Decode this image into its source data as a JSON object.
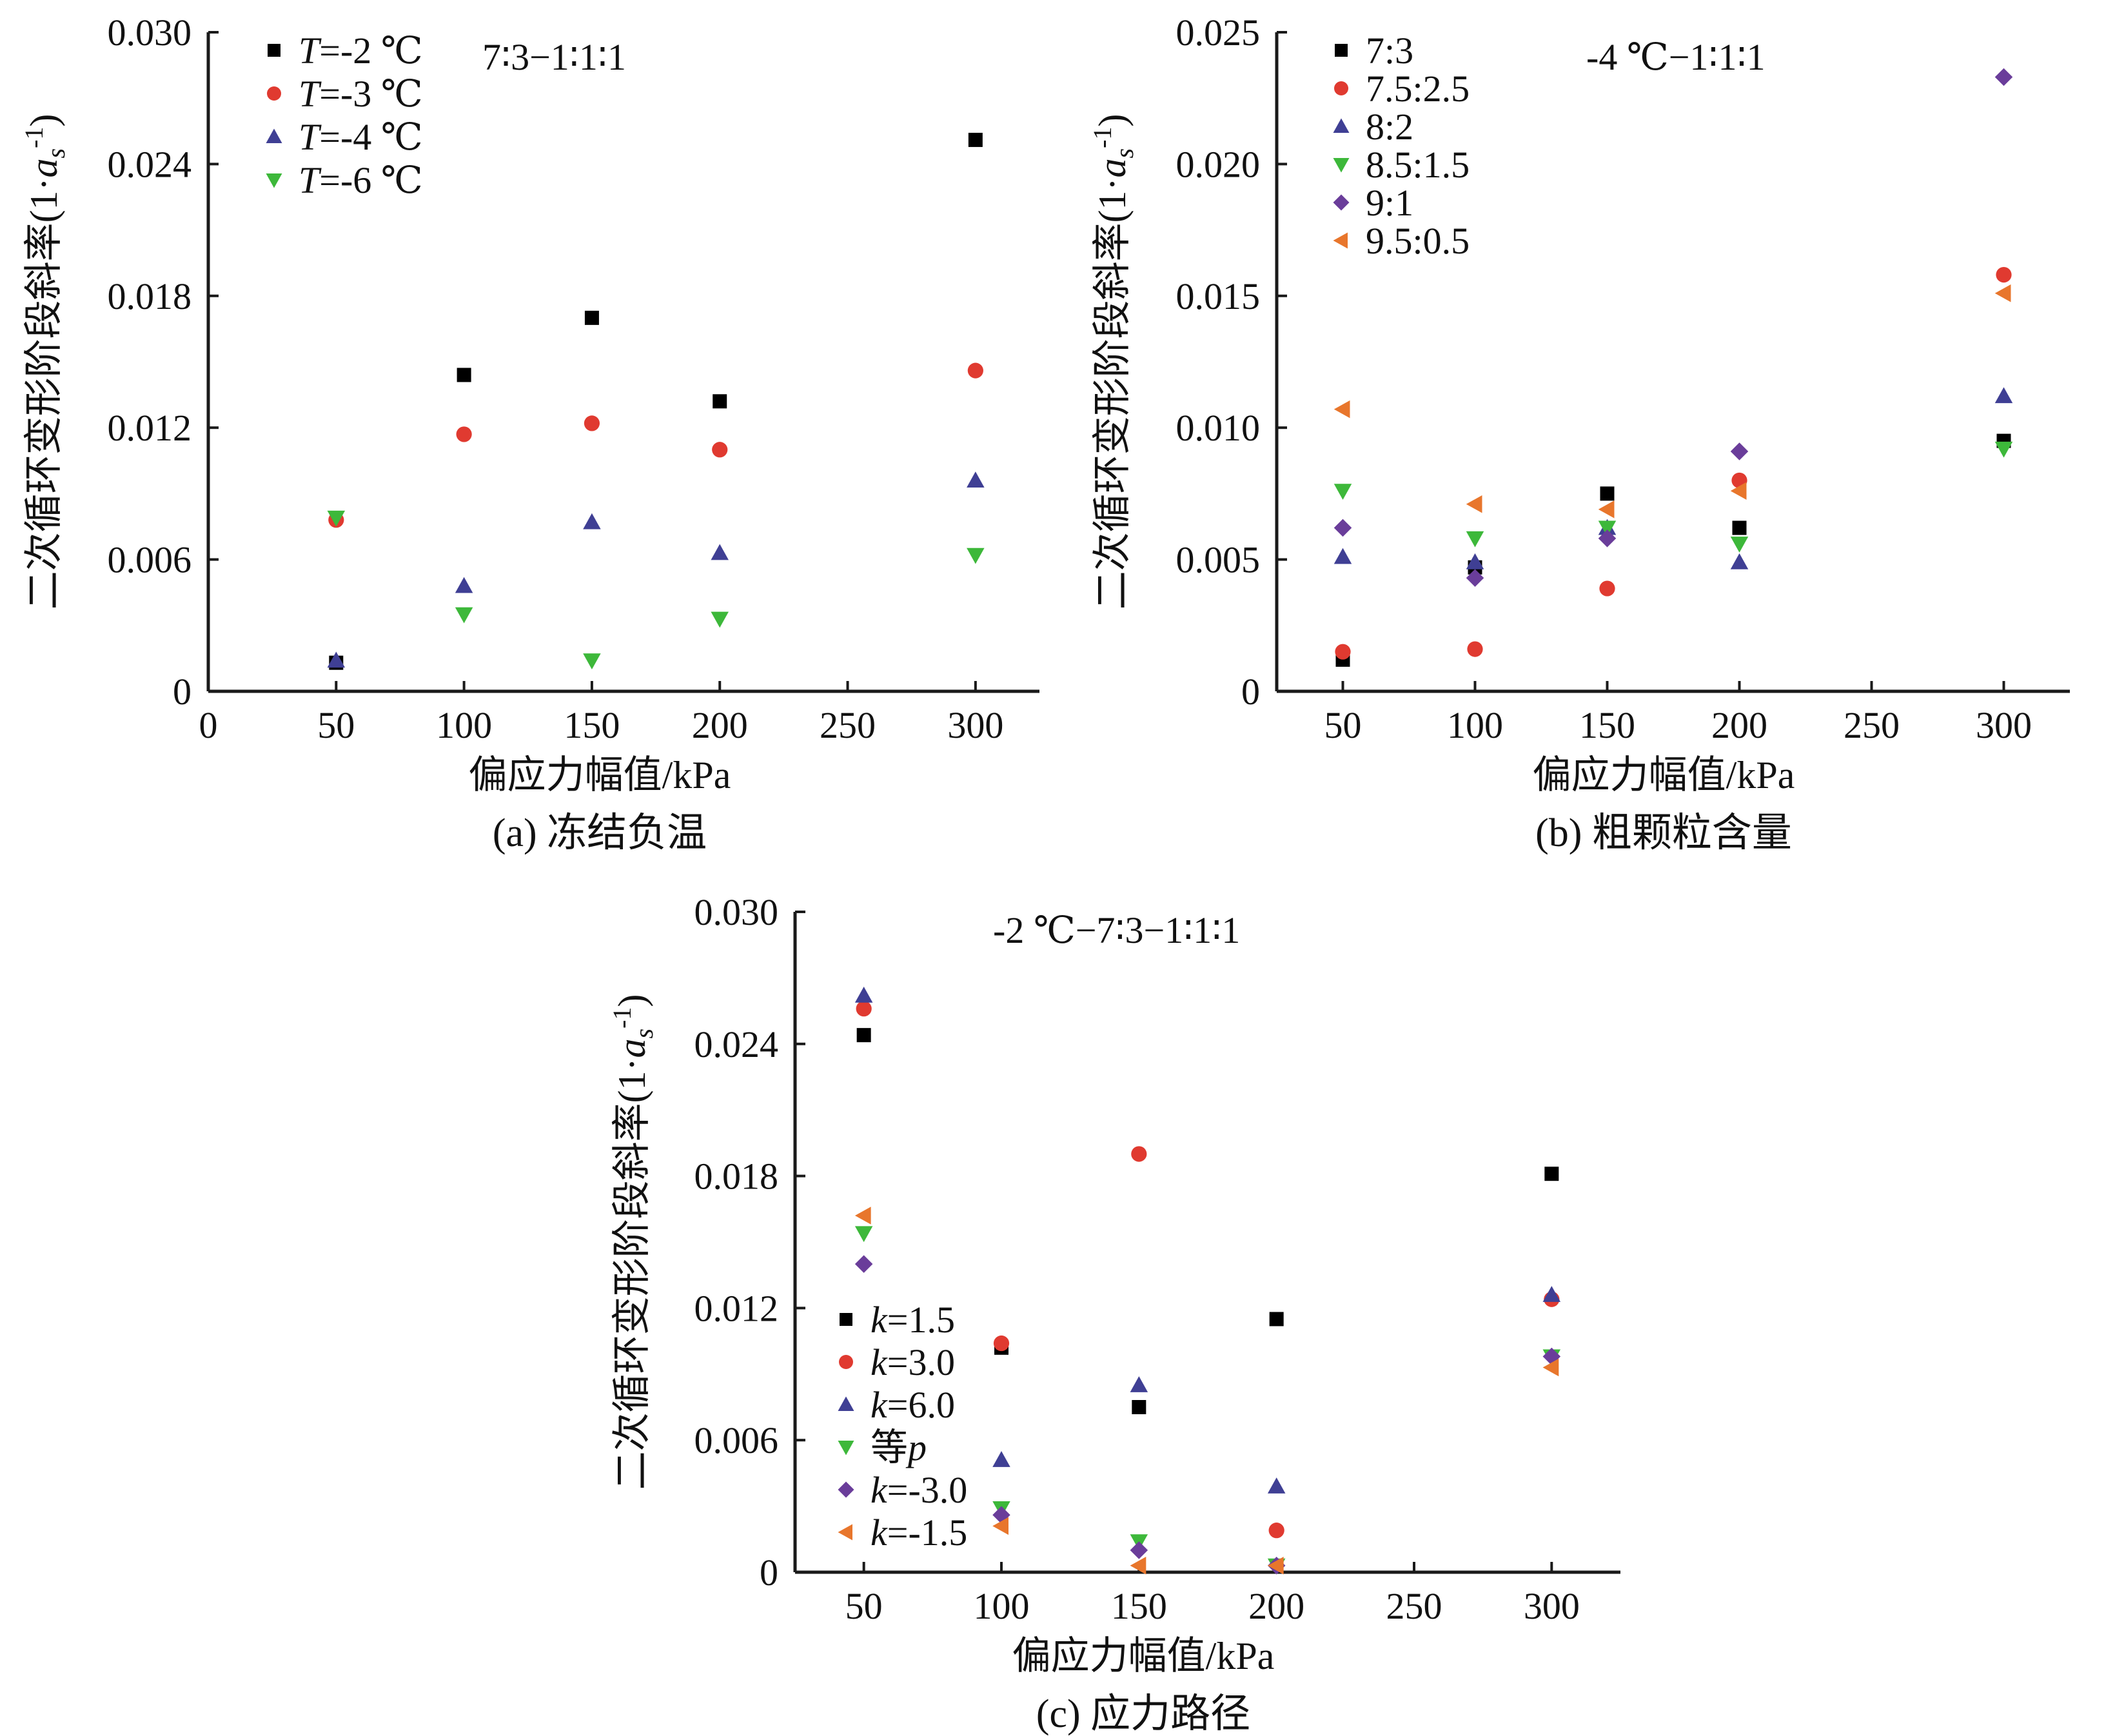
{
  "chart_data": [
    {
      "type": "scatter",
      "panel": "a",
      "caption": "(a) 冻结负温",
      "annotation": "7∶3−1∶1∶1",
      "xlabel": "偏应力幅值/kPa",
      "ylabel": "二次循环变形阶段斜率(1·a_s^-1)",
      "ylabel_text": "二次循环变形阶段斜率(1·",
      "ylabel_sym": "a",
      "ylabel_sub": "s",
      "ylabel_sup": "-1",
      "ylabel_close": ")",
      "xlim": [
        0,
        325
      ],
      "ylim": [
        0,
        0.03
      ],
      "xticks": [
        0,
        50,
        100,
        150,
        200,
        250,
        300
      ],
      "xtick_labels": [
        "0",
        "50",
        "100",
        "150",
        "200",
        "250",
        "300"
      ],
      "yticks": [
        0,
        0.006,
        0.012,
        0.018,
        0.024,
        0.03
      ],
      "ytick_labels": [
        "0",
        "0.006",
        "0.012",
        "0.018",
        "0.024",
        "0.030"
      ],
      "legend_position": "top-left",
      "series": [
        {
          "name": "T=-2 ℃",
          "name_italic": "T",
          "name_rest": "=-2 ℃",
          "marker": "square",
          "color": "#000000",
          "x": [
            50,
            100,
            150,
            200,
            300
          ],
          "y": [
            0.0013,
            0.0144,
            0.017,
            0.0132,
            0.0251
          ]
        },
        {
          "name": "T=-3 ℃",
          "name_italic": "T",
          "name_rest": "=-3 ℃",
          "marker": "circle",
          "color": "#e03a30",
          "x": [
            50,
            100,
            150,
            200,
            300
          ],
          "y": [
            0.0078,
            0.0117,
            0.0122,
            0.011,
            0.0146
          ]
        },
        {
          "name": "T=-4 ℃",
          "name_italic": "T",
          "name_rest": "=-4 ℃",
          "marker": "triangle-up",
          "color": "#3f3f94",
          "x": [
            50,
            100,
            150,
            200,
            300
          ],
          "y": [
            0.0014,
            0.0048,
            0.0077,
            0.0063,
            0.0096
          ]
        },
        {
          "name": "T=-6 ℃",
          "name_italic": "T",
          "name_rest": "=-6 ℃",
          "marker": "triangle-down",
          "color": "#3db83a",
          "x": [
            50,
            100,
            150,
            200,
            300
          ],
          "y": [
            0.0079,
            0.0035,
            0.0014,
            0.0033,
            0.0062
          ]
        }
      ]
    },
    {
      "type": "scatter",
      "panel": "b",
      "caption": "(b) 粗颗粒含量",
      "annotation": "-4 ℃−1∶1∶1",
      "xlabel": "偏应力幅值/kPa",
      "ylabel": "二次循环变形阶段斜率(1·a_s^-1)",
      "ylabel_text": "二次循环变形阶段斜率(1·",
      "ylabel_sym": "a",
      "ylabel_sub": "s",
      "ylabel_sup": "-1",
      "ylabel_close": ")",
      "xlim": [
        25,
        325
      ],
      "ylim": [
        0,
        0.025
      ],
      "xticks": [
        50,
        100,
        150,
        200,
        250,
        300
      ],
      "xtick_labels": [
        "50",
        "100",
        "150",
        "200",
        "250",
        "300"
      ],
      "yticks": [
        0,
        0.005,
        0.01,
        0.015,
        0.02,
        0.025
      ],
      "ytick_labels": [
        "0",
        "0.005",
        "0.010",
        "0.015",
        "0.020",
        "0.025"
      ],
      "legend_position": "top-left",
      "series": [
        {
          "name": "7:3",
          "marker": "square",
          "color": "#000000",
          "x": [
            50,
            100,
            150,
            200,
            300
          ],
          "y": [
            0.0012,
            0.0047,
            0.0075,
            0.0062,
            0.0095
          ]
        },
        {
          "name": "7.5:2.5",
          "marker": "circle",
          "color": "#e03a30",
          "x": [
            50,
            100,
            150,
            200,
            300
          ],
          "y": [
            0.0015,
            0.0016,
            0.0039,
            0.008,
            0.0158
          ]
        },
        {
          "name": "8:2",
          "marker": "triangle-up",
          "color": "#3f3f94",
          "x": [
            50,
            100,
            150,
            200,
            300
          ],
          "y": [
            0.0051,
            0.0049,
            0.0062,
            0.0049,
            0.0112
          ]
        },
        {
          "name": "8.5:1.5",
          "marker": "triangle-down",
          "color": "#3db83a",
          "x": [
            50,
            100,
            150,
            200,
            300
          ],
          "y": [
            0.0076,
            0.0058,
            0.0062,
            0.0056,
            0.0092
          ]
        },
        {
          "name": "9:1",
          "marker": "diamond",
          "color": "#6a3d9a",
          "x": [
            50,
            100,
            150,
            200,
            300
          ],
          "y": [
            0.0062,
            0.0043,
            0.0058,
            0.0091,
            0.0233
          ]
        },
        {
          "name": "9.5:0.5",
          "marker": "triangle-left",
          "color": "#e8762c",
          "x": [
            50,
            100,
            150,
            200,
            300
          ],
          "y": [
            0.0107,
            0.0071,
            0.0069,
            0.0076,
            0.0151
          ]
        }
      ]
    },
    {
      "type": "scatter",
      "panel": "c",
      "caption": "(c) 应力路径",
      "annotation": "-2 ℃−7∶3−1∶1∶1",
      "xlabel": "偏应力幅值/kPa",
      "ylabel": "二次循环变形阶段斜率(1·a_s^-1)",
      "ylabel_text": "二次循环变形阶段斜率(1·",
      "ylabel_sym": "a",
      "ylabel_sub": "s",
      "ylabel_sup": "-1",
      "ylabel_close": ")",
      "xlim": [
        25,
        325
      ],
      "ylim": [
        0,
        0.03
      ],
      "xticks": [
        50,
        100,
        150,
        200,
        250,
        300
      ],
      "xtick_labels": [
        "50",
        "100",
        "150",
        "200",
        "250",
        "300"
      ],
      "yticks": [
        0,
        0.006,
        0.012,
        0.018,
        0.024,
        0.03
      ],
      "ytick_labels": [
        "0",
        "0.006",
        "0.012",
        "0.018",
        "0.024",
        "0.030"
      ],
      "legend_position": "bottom-left",
      "series": [
        {
          "name": "k=1.5",
          "name_italic": "k",
          "name_rest": "=1.5",
          "marker": "square",
          "color": "#000000",
          "x": [
            50,
            100,
            150,
            200,
            300
          ],
          "y": [
            0.0244,
            0.0102,
            0.0075,
            0.0115,
            0.0181
          ]
        },
        {
          "name": "k=3.0",
          "name_italic": "k",
          "name_rest": "=3.0",
          "marker": "circle",
          "color": "#e03a30",
          "x": [
            50,
            100,
            150,
            200,
            300
          ],
          "y": [
            0.0256,
            0.0104,
            0.019,
            0.0019,
            0.0124
          ]
        },
        {
          "name": "k=6.0",
          "name_italic": "k",
          "name_rest": "=6.0",
          "marker": "triangle-up",
          "color": "#3f3f94",
          "x": [
            50,
            100,
            150,
            200,
            300
          ],
          "y": [
            0.0262,
            0.0051,
            0.0085,
            0.0039,
            0.0126
          ]
        },
        {
          "name": "等p",
          "name_rest": "等",
          "name_italic_after": "p",
          "marker": "triangle-down",
          "color": "#3db83a",
          "x": [
            50,
            100,
            150,
            200,
            300
          ],
          "y": [
            0.0154,
            0.0029,
            0.0014,
            0.0003,
            0.0098
          ]
        },
        {
          "name": "k=-3.0",
          "name_italic": "k",
          "name_rest": "=-3.0",
          "marker": "diamond",
          "color": "#6a3d9a",
          "x": [
            50,
            100,
            150,
            200,
            300
          ],
          "y": [
            0.014,
            0.0026,
            0.001,
            0.0003,
            0.0098
          ]
        },
        {
          "name": "k=-1.5",
          "name_italic": "k",
          "name_rest": "=-1.5",
          "marker": "triangle-left",
          "color": "#e8762c",
          "x": [
            50,
            100,
            150,
            200,
            300
          ],
          "y": [
            0.0162,
            0.0021,
            0.0003,
            0.0003,
            0.0093
          ]
        }
      ]
    }
  ]
}
